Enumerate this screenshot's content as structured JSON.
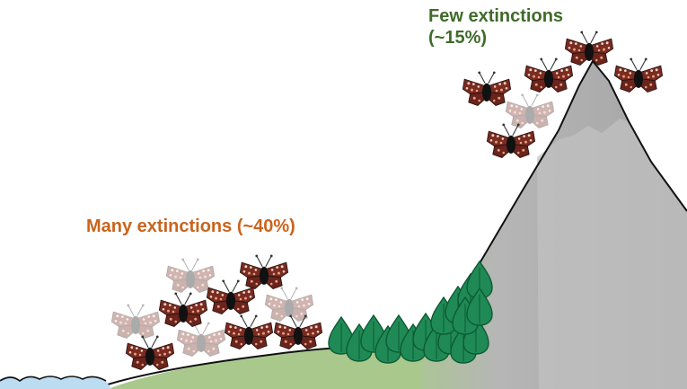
{
  "labels": {
    "lowland": "Many extinctions (~40%)",
    "highland_line1": "Few extinctions",
    "highland_line2": "(~15%)"
  },
  "colors": {
    "lowland_label": "#c8641e",
    "highland_label": "#3f6b2a",
    "mountain_gray": "#a6a6a6",
    "snow_gray": "#c4c4c4",
    "lowland_green": "#a9c98c",
    "tree_green": "#1f8a55",
    "water_blue": "#6aa8d8",
    "butterfly_body": "#7a2b22",
    "butterfly_spots": "#e8a07a"
  },
  "icons": {
    "butterfly": "checkerspot-butterfly-icon",
    "tree": "conifer-tree-icon"
  },
  "butterfly_groups": {
    "lowland": {
      "opaque": 5,
      "faded": 4
    },
    "highland": {
      "opaque": 5,
      "faded": 1
    }
  }
}
